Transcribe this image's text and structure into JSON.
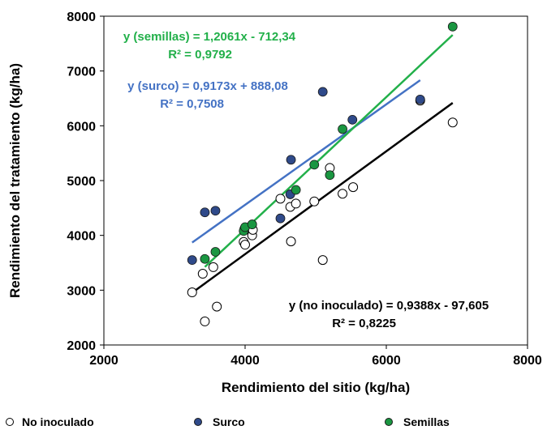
{
  "chart_data": {
    "type": "scatter",
    "xlabel": "Rendimiento del sitio (kg/ha)",
    "ylabel": "Rendimiento del tratamiento (kg/ha)",
    "xlim": [
      2000,
      8000
    ],
    "ylim": [
      2000,
      8000
    ],
    "x_ticks": [
      "2000",
      "4000",
      "6000",
      "8000"
    ],
    "y_ticks": [
      "2000",
      "3000",
      "4000",
      "5000",
      "6000",
      "7000",
      "8000"
    ],
    "grid": false,
    "legend": "bottom",
    "series": [
      {
        "name": "No inoculado",
        "marker": "open-circle",
        "color": "#000000",
        "points": [
          [
            3250,
            2960
          ],
          [
            3400,
            3300
          ],
          [
            3430,
            2430
          ],
          [
            3550,
            3420
          ],
          [
            3600,
            2700
          ],
          [
            3980,
            3880
          ],
          [
            4000,
            3830
          ],
          [
            4100,
            4000
          ],
          [
            4110,
            4100
          ],
          [
            4500,
            4670
          ],
          [
            4640,
            4520
          ],
          [
            4650,
            3890
          ],
          [
            4720,
            4580
          ],
          [
            4980,
            4620
          ],
          [
            5100,
            3550
          ],
          [
            5200,
            5230
          ],
          [
            5380,
            4760
          ],
          [
            5530,
            4880
          ],
          [
            6480,
            6460
          ],
          [
            6940,
            6060
          ]
        ],
        "trendline": {
          "equation": "y (no inoculado) = 0,9388x - 97,605",
          "r2": "R² = 0,8225",
          "slope": 0.9388,
          "intercept": -97.605,
          "x_range": [
            3250,
            6940
          ],
          "color": "#000000"
        }
      },
      {
        "name": "Surco",
        "marker": "filled-circle",
        "color": "#2F4A8A",
        "points": [
          [
            3250,
            3550
          ],
          [
            3430,
            4420
          ],
          [
            3580,
            4450
          ],
          [
            3990,
            4120
          ],
          [
            4100,
            4200
          ],
          [
            4500,
            4310
          ],
          [
            4640,
            4750
          ],
          [
            4650,
            5380
          ],
          [
            5100,
            6620
          ],
          [
            5520,
            6110
          ],
          [
            6480,
            6480
          ]
        ],
        "trendline": {
          "equation": "y (surco) = 0,9173x + 888,08",
          "r2": "R² = 0,7508",
          "slope": 0.9173,
          "intercept": 888.08,
          "x_range": [
            3250,
            6480
          ],
          "color": "#4472C4"
        }
      },
      {
        "name": "Semillas",
        "marker": "filled-circle",
        "color": "#1A9641",
        "points": [
          [
            3430,
            3570
          ],
          [
            3580,
            3700
          ],
          [
            3980,
            4080
          ],
          [
            4000,
            4150
          ],
          [
            4100,
            4200
          ],
          [
            4720,
            4830
          ],
          [
            4980,
            5290
          ],
          [
            5200,
            5100
          ],
          [
            5380,
            5940
          ],
          [
            6940,
            7810
          ]
        ],
        "trendline": {
          "equation": "y (semillas) = 1,2061x - 712,34",
          "r2": "R² = 0,9792",
          "slope": 1.2061,
          "intercept": -712.34,
          "x_range": [
            3430,
            6940
          ],
          "color": "#22B04A"
        }
      }
    ]
  }
}
